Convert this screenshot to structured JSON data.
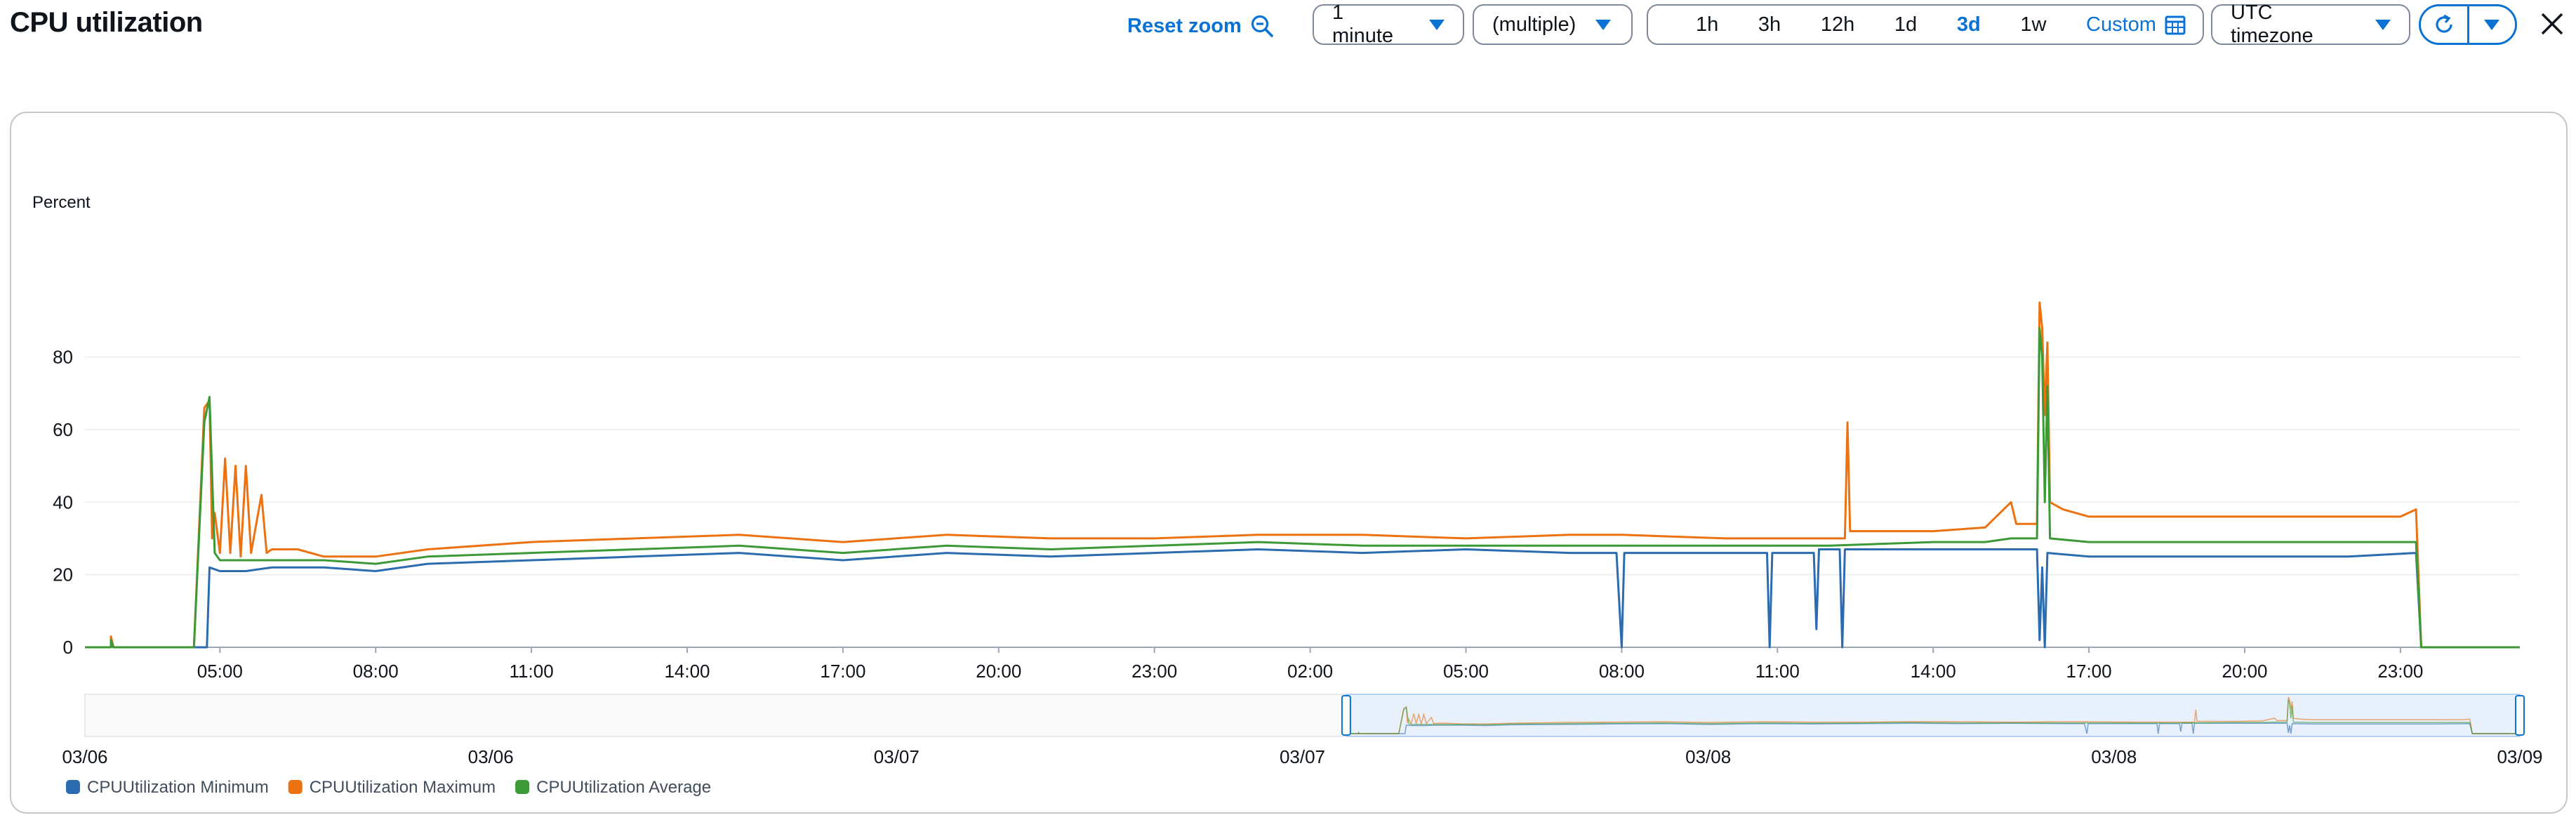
{
  "header": {
    "title": "CPU utilization",
    "reset_zoom": "Reset zoom",
    "period": "1 minute",
    "statistic": "(multiple)",
    "ranges": [
      "1h",
      "3h",
      "12h",
      "1d",
      "3d",
      "1w"
    ],
    "active_range": "3d",
    "custom": "Custom",
    "timezone": "UTC timezone"
  },
  "icons": {
    "reset_zoom": "zoom-out-icon",
    "dropdown": "caret-down-icon",
    "custom": "calendar-icon",
    "refresh": "refresh-icon",
    "refresh_menu": "caret-down-icon",
    "close": "close-icon"
  },
  "chart_data": {
    "type": "line",
    "ylabel": "Percent",
    "ylim": [
      0,
      95
    ],
    "yticks": [
      0,
      20,
      40,
      60,
      80
    ],
    "x_tick_labels": [
      "05:00",
      "08:00",
      "11:00",
      "14:00",
      "17:00",
      "20:00",
      "23:00",
      "02:00",
      "05:00",
      "08:00",
      "11:00",
      "14:00",
      "17:00",
      "20:00",
      "23:00"
    ],
    "x_tick_hours": [
      5,
      8,
      11,
      14,
      17,
      20,
      23,
      26,
      29,
      32,
      35,
      38,
      41,
      44,
      47
    ],
    "x_range_hours": [
      2.4,
      49.3
    ],
    "grid": true,
    "legend_position": "bottom-left",
    "series": [
      {
        "name": "CPUUtilization Minimum",
        "color": "#2b6cb0",
        "points": [
          [
            2.4,
            0
          ],
          [
            2.9,
            0
          ],
          [
            2.9,
            1
          ],
          [
            2.95,
            0
          ],
          [
            4.5,
            0
          ],
          [
            4.75,
            0
          ],
          [
            4.8,
            22
          ],
          [
            5.0,
            21
          ],
          [
            5.5,
            21
          ],
          [
            6.0,
            22
          ],
          [
            7.0,
            22
          ],
          [
            8.0,
            21
          ],
          [
            9.0,
            23
          ],
          [
            11.0,
            24
          ],
          [
            13.0,
            25
          ],
          [
            15.0,
            26
          ],
          [
            17.0,
            24
          ],
          [
            19.0,
            26
          ],
          [
            21.0,
            25
          ],
          [
            23.0,
            26
          ],
          [
            25.0,
            27
          ],
          [
            27.0,
            26
          ],
          [
            29.0,
            27
          ],
          [
            31.0,
            26
          ],
          [
            31.9,
            26
          ],
          [
            32.0,
            0
          ],
          [
            32.05,
            26
          ],
          [
            34.8,
            26
          ],
          [
            34.85,
            0
          ],
          [
            34.9,
            26
          ],
          [
            35.7,
            26
          ],
          [
            35.75,
            5
          ],
          [
            35.8,
            27
          ],
          [
            36.2,
            27
          ],
          [
            36.25,
            0
          ],
          [
            36.3,
            27
          ],
          [
            38.0,
            27
          ],
          [
            39.0,
            27
          ],
          [
            40.0,
            27
          ],
          [
            40.05,
            2
          ],
          [
            40.1,
            22
          ],
          [
            40.15,
            0
          ],
          [
            40.2,
            26
          ],
          [
            41.0,
            25
          ],
          [
            44.0,
            25
          ],
          [
            46.0,
            25
          ],
          [
            47.3,
            26
          ],
          [
            47.4,
            0
          ],
          [
            49.3,
            0
          ]
        ]
      },
      {
        "name": "CPUUtilization Maximum",
        "color": "#ec7211",
        "points": [
          [
            2.4,
            0
          ],
          [
            2.9,
            0
          ],
          [
            2.9,
            3
          ],
          [
            2.95,
            0
          ],
          [
            4.5,
            0
          ],
          [
            4.7,
            66
          ],
          [
            4.8,
            68
          ],
          [
            4.85,
            30
          ],
          [
            4.9,
            37
          ],
          [
            5.0,
            26
          ],
          [
            5.1,
            52
          ],
          [
            5.2,
            26
          ],
          [
            5.3,
            50
          ],
          [
            5.4,
            25
          ],
          [
            5.5,
            50
          ],
          [
            5.6,
            26
          ],
          [
            5.8,
            42
          ],
          [
            5.9,
            26
          ],
          [
            6.0,
            27
          ],
          [
            6.5,
            27
          ],
          [
            7.0,
            25
          ],
          [
            8.0,
            25
          ],
          [
            9.0,
            27
          ],
          [
            11.0,
            29
          ],
          [
            13.0,
            30
          ],
          [
            15.0,
            31
          ],
          [
            17.0,
            29
          ],
          [
            19.0,
            31
          ],
          [
            21.0,
            30
          ],
          [
            23.0,
            30
          ],
          [
            25.0,
            31
          ],
          [
            27.0,
            31
          ],
          [
            29.0,
            30
          ],
          [
            31.0,
            31
          ],
          [
            32.0,
            31
          ],
          [
            34.0,
            30
          ],
          [
            36.0,
            30
          ],
          [
            36.3,
            30
          ],
          [
            36.35,
            62
          ],
          [
            36.4,
            32
          ],
          [
            38.0,
            32
          ],
          [
            39.0,
            33
          ],
          [
            39.5,
            40
          ],
          [
            39.6,
            34
          ],
          [
            40.0,
            34
          ],
          [
            40.05,
            95
          ],
          [
            40.1,
            88
          ],
          [
            40.15,
            64
          ],
          [
            40.2,
            84
          ],
          [
            40.25,
            40
          ],
          [
            40.5,
            38
          ],
          [
            41.0,
            36
          ],
          [
            43.0,
            36
          ],
          [
            45.0,
            36
          ],
          [
            47.0,
            36
          ],
          [
            47.3,
            38
          ],
          [
            47.4,
            0
          ],
          [
            49.3,
            0
          ]
        ]
      },
      {
        "name": "CPUUtilization Average",
        "color": "#3b9a36",
        "points": [
          [
            2.4,
            0
          ],
          [
            2.9,
            0
          ],
          [
            2.9,
            2
          ],
          [
            2.95,
            0
          ],
          [
            4.5,
            0
          ],
          [
            4.7,
            62
          ],
          [
            4.8,
            69
          ],
          [
            4.9,
            26
          ],
          [
            5.0,
            24
          ],
          [
            5.5,
            24
          ],
          [
            6.0,
            24
          ],
          [
            7.0,
            24
          ],
          [
            8.0,
            23
          ],
          [
            9.0,
            25
          ],
          [
            11.0,
            26
          ],
          [
            13.0,
            27
          ],
          [
            15.0,
            28
          ],
          [
            17.0,
            26
          ],
          [
            19.0,
            28
          ],
          [
            21.0,
            27
          ],
          [
            23.0,
            28
          ],
          [
            25.0,
            29
          ],
          [
            27.0,
            28
          ],
          [
            29.0,
            28
          ],
          [
            31.0,
            28
          ],
          [
            32.0,
            28
          ],
          [
            34.0,
            28
          ],
          [
            36.0,
            28
          ],
          [
            38.0,
            29
          ],
          [
            39.0,
            29
          ],
          [
            39.5,
            30
          ],
          [
            40.0,
            30
          ],
          [
            40.05,
            88
          ],
          [
            40.1,
            80
          ],
          [
            40.15,
            40
          ],
          [
            40.2,
            72
          ],
          [
            40.25,
            30
          ],
          [
            41.0,
            29
          ],
          [
            43.0,
            29
          ],
          [
            45.0,
            29
          ],
          [
            47.0,
            29
          ],
          [
            47.3,
            29
          ],
          [
            47.4,
            0
          ],
          [
            49.3,
            0
          ]
        ]
      }
    ],
    "overview_labels": [
      "03/06",
      "03/06",
      "03/07",
      "03/07",
      "03/08",
      "03/08",
      "03/09"
    ],
    "overview_range_hours": [
      -48,
      49.3
    ],
    "overview_selection_hours": [
      2.4,
      49.3
    ]
  }
}
